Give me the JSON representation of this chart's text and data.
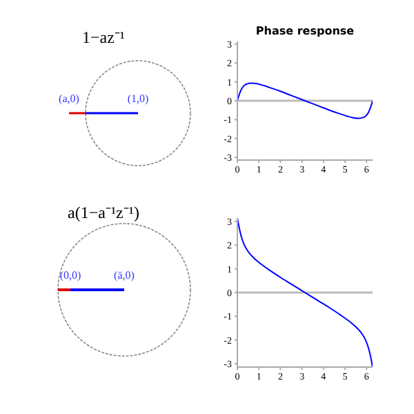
{
  "chart_data": [
    {
      "type": "other",
      "title": "1−az⁻¹",
      "annotations": [
        "(a,0)",
        "(1,0)"
      ]
    },
    {
      "type": "line",
      "title": "Phase response",
      "xlim": [
        0,
        6.28
      ],
      "xticks": [
        0,
        1,
        2,
        3,
        4,
        5,
        6
      ],
      "ylim": [
        -3.14,
        3.14
      ],
      "yticks": [
        -3,
        -2,
        -1,
        0,
        1,
        2,
        3
      ],
      "ref_lines": [
        {
          "axis": "y",
          "value": 0,
          "color": "#bbbbbb"
        }
      ],
      "series": [
        {
          "color": "#0000ff",
          "x": [
            0,
            0.1,
            0.2,
            0.3,
            0.45,
            0.64,
            0.9,
            1.2,
            1.6,
            2.0,
            2.5,
            3.14,
            3.78,
            4.28,
            4.68,
            5.08,
            5.38,
            5.64,
            5.83,
            5.98,
            6.08,
            6.18,
            6.28
          ],
          "values": [
            0,
            0.37,
            0.63,
            0.79,
            0.89,
            0.93,
            0.9,
            0.81,
            0.66,
            0.5,
            0.28,
            0,
            -0.28,
            -0.5,
            -0.66,
            -0.81,
            -0.9,
            -0.93,
            -0.89,
            -0.79,
            -0.63,
            -0.37,
            0
          ]
        }
      ]
    },
    {
      "type": "other",
      "title": "a(1−a⁻¹z⁻¹)",
      "annotations": [
        "(0,0)",
        "(ā,0)"
      ]
    },
    {
      "type": "line",
      "xlim": [
        0,
        6.28
      ],
      "xticks": [
        0,
        1,
        2,
        3,
        4,
        5,
        6
      ],
      "ylim": [
        -3.14,
        3.14
      ],
      "yticks": [
        -3,
        -2,
        -1,
        0,
        1,
        2,
        3
      ],
      "ref_lines": [
        {
          "axis": "y",
          "value": 0,
          "color": "#bbbbbb"
        }
      ],
      "series": [
        {
          "color": "#0000ff",
          "x": [
            0,
            0.1,
            0.2,
            0.3,
            0.5,
            0.75,
            1.0,
            1.5,
            2.0,
            2.5,
            3.14,
            3.78,
            4.28,
            4.78,
            5.28,
            5.53,
            5.78,
            5.98,
            6.08,
            6.18,
            6.28
          ],
          "values": [
            3.14,
            2.67,
            2.31,
            2.05,
            1.73,
            1.47,
            1.27,
            0.94,
            0.64,
            0.36,
            0,
            -0.36,
            -0.64,
            -0.94,
            -1.27,
            -1.47,
            -1.73,
            -2.05,
            -2.31,
            -2.67,
            -3.14
          ]
        }
      ]
    }
  ]
}
